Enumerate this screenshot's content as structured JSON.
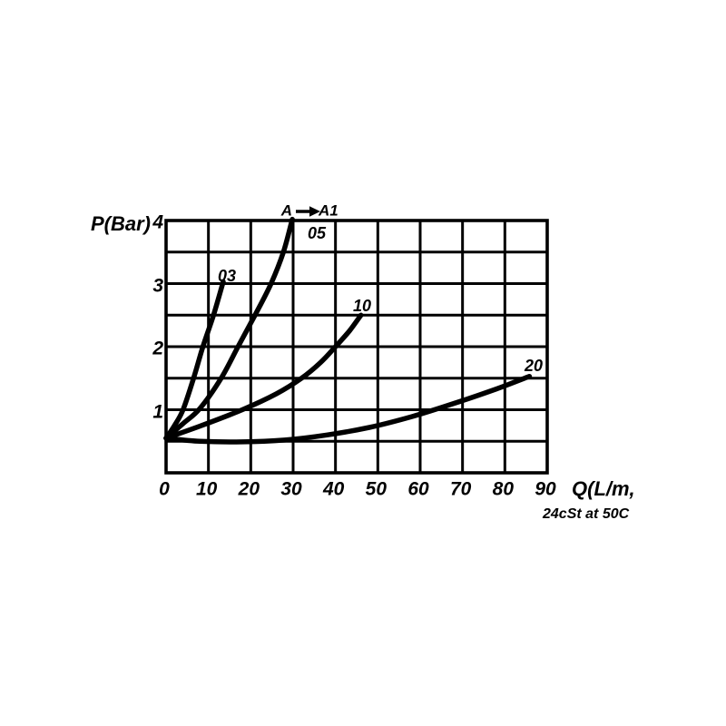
{
  "page": {
    "background": "#ffffff",
    "ink": "#000000"
  },
  "chart_data": {
    "type": "line",
    "ylabel": "P(Bar)",
    "xlabel": "Q(L/m,",
    "note_below_xlabel": "24cSt at 50C",
    "flow_direction": {
      "from": "A",
      "to": "A1"
    },
    "x_tick_labels": [
      "0",
      "10",
      "20",
      "30",
      "40",
      "50",
      "60",
      "70",
      "80",
      "90"
    ],
    "y_tick_labels": [
      "4",
      "3",
      "2",
      "1"
    ],
    "xlim": [
      0,
      90
    ],
    "ylim": [
      0,
      4
    ],
    "x_grid_step": 10,
    "y_grid_step": 0.5,
    "grid": true,
    "legend_position": "labels-at-curve-ends",
    "line_color": "#000000",
    "series": [
      {
        "name": "03",
        "label": "03",
        "points": [
          [
            0,
            0.55
          ],
          [
            2,
            0.75
          ],
          [
            4,
            1.0
          ],
          [
            6.5,
            1.5
          ],
          [
            8.7,
            2.0
          ],
          [
            11.2,
            2.5
          ],
          [
            13.5,
            3.03
          ]
        ]
      },
      {
        "name": "05",
        "label": "05",
        "points": [
          [
            0,
            0.55
          ],
          [
            4,
            0.78
          ],
          [
            8,
            1.02
          ],
          [
            13,
            1.5
          ],
          [
            17,
            2.0
          ],
          [
            21,
            2.5
          ],
          [
            24.8,
            3.0
          ],
          [
            27.7,
            3.5
          ],
          [
            29.8,
            4.02
          ]
        ]
      },
      {
        "name": "10",
        "label": "10",
        "points": [
          [
            0,
            0.55
          ],
          [
            8,
            0.74
          ],
          [
            18,
            1.0
          ],
          [
            26,
            1.25
          ],
          [
            32,
            1.5
          ],
          [
            36.5,
            1.75
          ],
          [
            40,
            2.0
          ],
          [
            43.3,
            2.25
          ],
          [
            46,
            2.5
          ]
        ]
      },
      {
        "name": "20",
        "label": "20",
        "points": [
          [
            0,
            0.55
          ],
          [
            8,
            0.5
          ],
          [
            18,
            0.49
          ],
          [
            28,
            0.52
          ],
          [
            38,
            0.6
          ],
          [
            48,
            0.72
          ],
          [
            58,
            0.89
          ],
          [
            68,
            1.1
          ],
          [
            78,
            1.33
          ],
          [
            85.8,
            1.53
          ]
        ]
      }
    ]
  }
}
